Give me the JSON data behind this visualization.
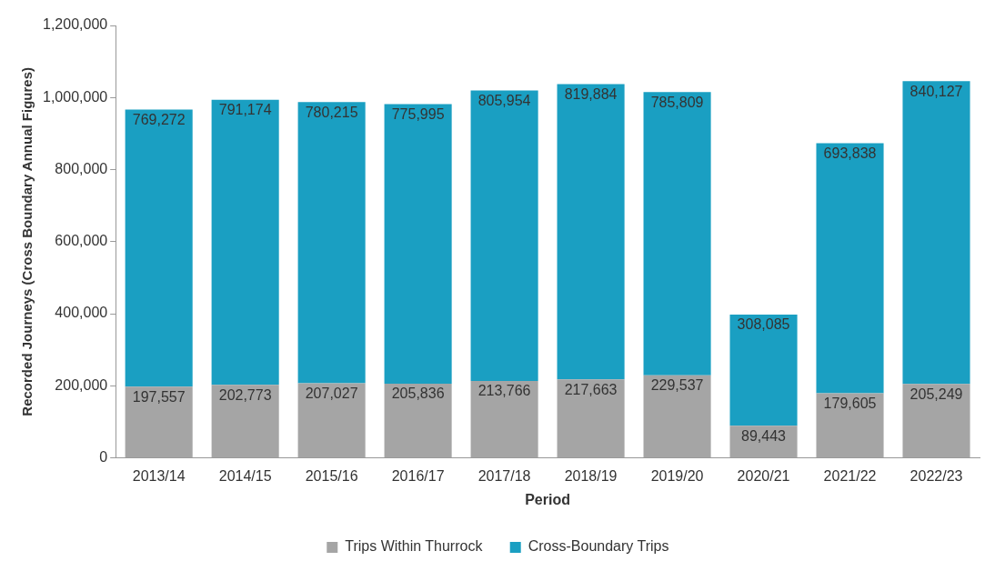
{
  "chart_data": {
    "type": "bar",
    "stacked": true,
    "xlabel": "Period",
    "ylabel": "Recorded Journeys (Cross Boundary Annual Figures)",
    "categories": [
      "2013/14",
      "2014/15",
      "2015/16",
      "2016/17",
      "2017/18",
      "2018/19",
      "2019/20",
      "2020/21",
      "2021/22",
      "2022/23"
    ],
    "series": [
      {
        "name": "Trips Within Thurrock",
        "color": "#a5a5a5",
        "values": [
          197557,
          202773,
          207027,
          205836,
          213766,
          217663,
          229537,
          89443,
          179605,
          205249
        ],
        "value_labels": [
          "197,557",
          "202,773",
          "207,027",
          "205,836",
          "213,766",
          "217,663",
          "229,537",
          "89,443",
          "179,605",
          "205,249"
        ]
      },
      {
        "name": "Cross-Boundary Trips",
        "color": "#1a9fc2",
        "values": [
          769272,
          791174,
          780215,
          775995,
          805954,
          819884,
          785809,
          308085,
          693838,
          840127
        ],
        "value_labels": [
          "769,272",
          "791,174",
          "780,215",
          "775,995",
          "805,954",
          "819,884",
          "785,809",
          "308,085",
          "693,838",
          "840,127"
        ]
      }
    ],
    "ylim": [
      0,
      1200000
    ],
    "yticks": [
      0,
      {
        "value": 200000,
        "label": "200,000"
      },
      {
        "value": 400000,
        "label": "400,000"
      },
      {
        "value": 600000,
        "label": "600,000"
      },
      {
        "value": 800000,
        "label": "800,000"
      },
      {
        "value": 1000000,
        "label": "1,000,000"
      },
      {
        "value": 1200000,
        "label": "1,200,000"
      }
    ],
    "legend": "bottom",
    "grid": false
  }
}
